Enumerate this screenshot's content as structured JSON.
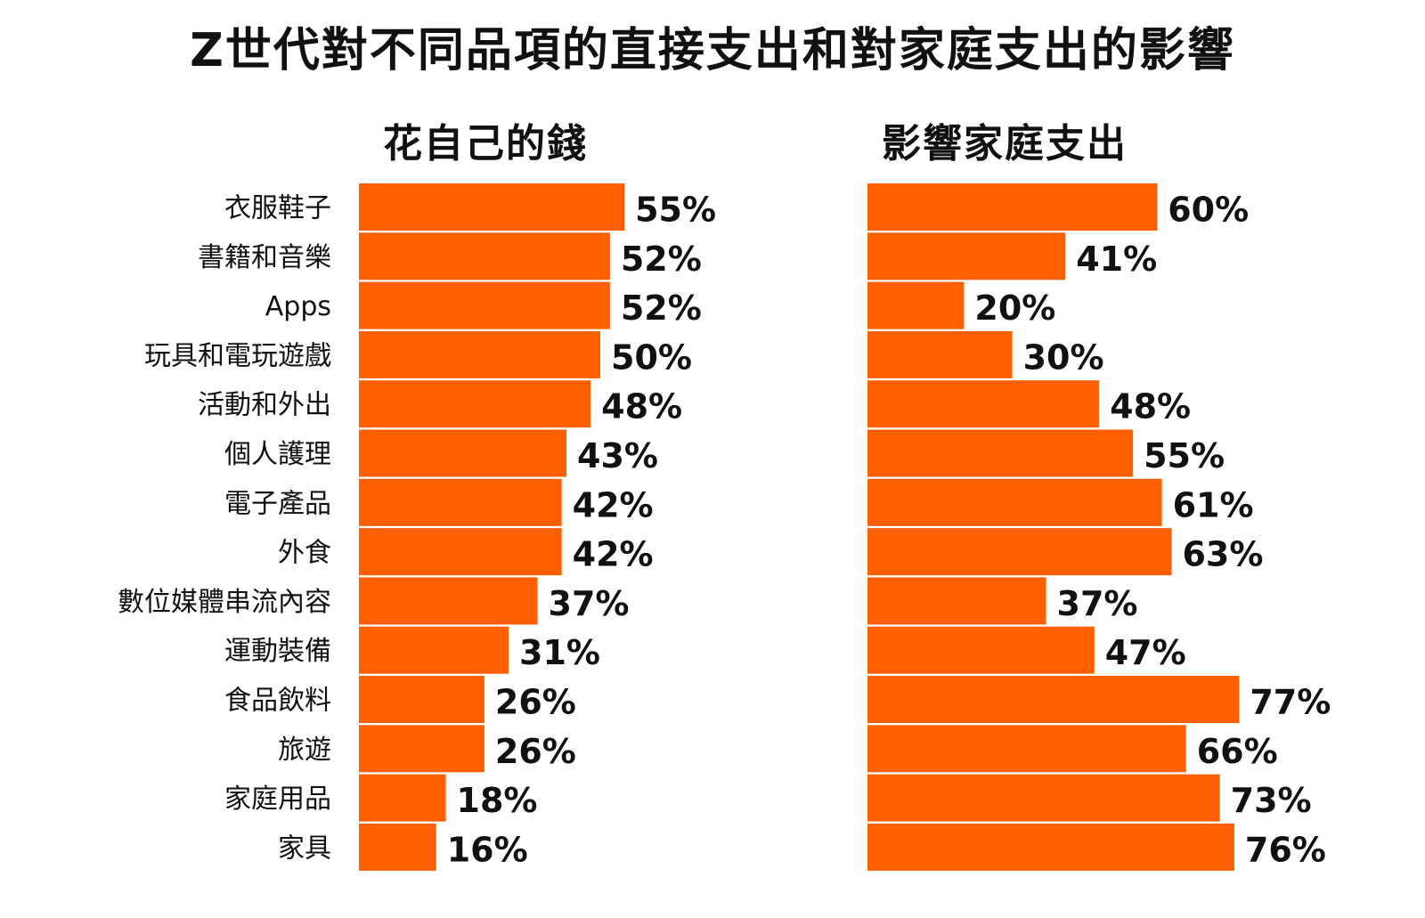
{
  "title": "Z世代對不同品項的直接支出和對家庭支出的影響",
  "colors": {
    "bar": "#ff5f00",
    "text": "#111111"
  },
  "chart_data": {
    "type": "bar",
    "orientation": "horizontal",
    "categories": [
      "衣服鞋子",
      "書籍和音樂",
      "Apps",
      "玩具和電玩遊戲",
      "活動和外出",
      "個人護理",
      "電子產品",
      "外食",
      "數位媒體串流內容",
      "運動裝備",
      "食品飲料",
      "旅遊",
      "家庭用品",
      "家具"
    ],
    "series": [
      {
        "name": "花自己的錢",
        "values": [
          55,
          52,
          52,
          50,
          48,
          43,
          42,
          42,
          37,
          31,
          26,
          26,
          18,
          16
        ],
        "labels": [
          "55%",
          "52%",
          "52%",
          "50%",
          "48%",
          "43%",
          "42%",
          "42%",
          "37%",
          "31%",
          "26%",
          "26%",
          "18%",
          "16%"
        ]
      },
      {
        "name": "影響家庭支出",
        "values": [
          60,
          41,
          20,
          30,
          48,
          55,
          61,
          63,
          37,
          47,
          77,
          66,
          73,
          76
        ],
        "labels": [
          "60%",
          "41%",
          "20%",
          "30%",
          "48%",
          "55%",
          "61%",
          "63%",
          "37%",
          "47%",
          "77%",
          "66%",
          "73%",
          "76%"
        ]
      }
    ],
    "unit": "%",
    "grid": false,
    "legend": "none"
  }
}
